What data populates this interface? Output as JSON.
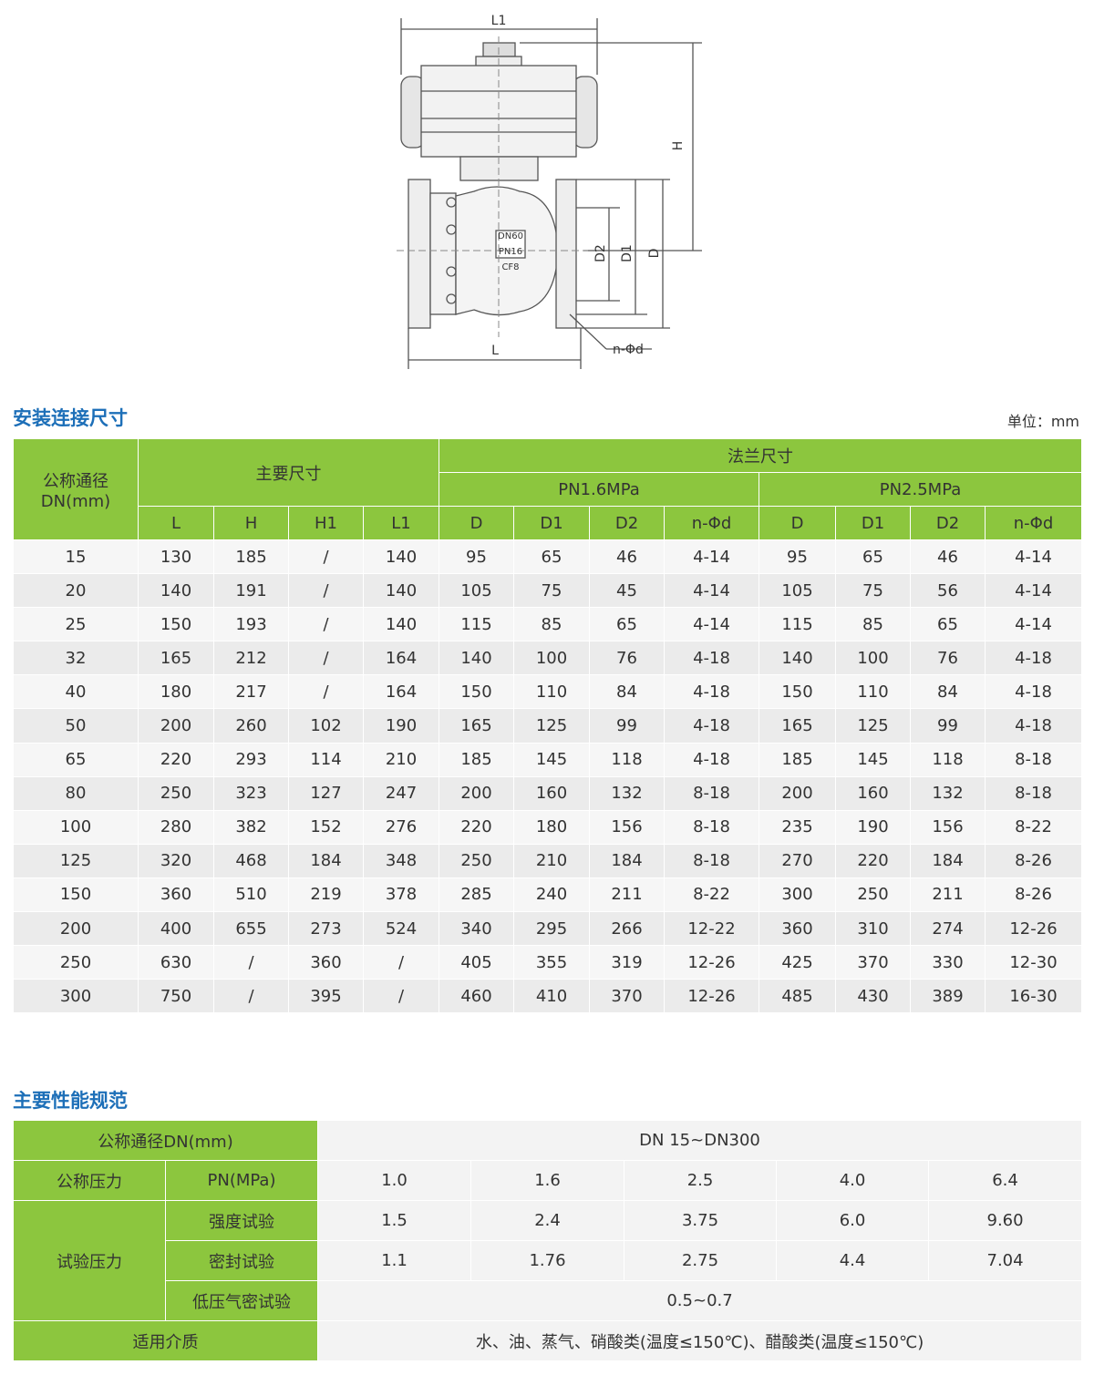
{
  "diagram": {
    "labels": {
      "overall_length": "L1",
      "height": "H",
      "d2": "D2",
      "d1": "D1",
      "d": "D",
      "length": "L",
      "bolt_holes": "n-Φd",
      "body_dn": "DN60",
      "body_pn": "PN16",
      "body_material": "CF8"
    }
  },
  "dimensions": {
    "title": "安装连接尺寸",
    "unit": "单位：mm",
    "header": {
      "dn": [
        "公称通径",
        "DN(mm)"
      ],
      "main": "主要尺寸",
      "flange": "法兰尺寸",
      "pn16": "PN1.6MPa",
      "pn25": "PN2.5MPa",
      "columns": [
        "L",
        "H",
        "H1",
        "L1",
        "D",
        "D1",
        "D2",
        "n-Φd",
        "D",
        "D1",
        "D2",
        "n-Φd"
      ]
    },
    "rows": [
      [
        "15",
        "130",
        "185",
        "/",
        "140",
        "95",
        "65",
        "46",
        "4-14",
        "95",
        "65",
        "46",
        "4-14"
      ],
      [
        "20",
        "140",
        "191",
        "/",
        "140",
        "105",
        "75",
        "45",
        "4-14",
        "105",
        "75",
        "56",
        "4-14"
      ],
      [
        "25",
        "150",
        "193",
        "/",
        "140",
        "115",
        "85",
        "65",
        "4-14",
        "115",
        "85",
        "65",
        "4-14"
      ],
      [
        "32",
        "165",
        "212",
        "/",
        "164",
        "140",
        "100",
        "76",
        "4-18",
        "140",
        "100",
        "76",
        "4-18"
      ],
      [
        "40",
        "180",
        "217",
        "/",
        "164",
        "150",
        "110",
        "84",
        "4-18",
        "150",
        "110",
        "84",
        "4-18"
      ],
      [
        "50",
        "200",
        "260",
        "102",
        "190",
        "165",
        "125",
        "99",
        "4-18",
        "165",
        "125",
        "99",
        "4-18"
      ],
      [
        "65",
        "220",
        "293",
        "114",
        "210",
        "185",
        "145",
        "118",
        "4-18",
        "185",
        "145",
        "118",
        "8-18"
      ],
      [
        "80",
        "250",
        "323",
        "127",
        "247",
        "200",
        "160",
        "132",
        "8-18",
        "200",
        "160",
        "132",
        "8-18"
      ],
      [
        "100",
        "280",
        "382",
        "152",
        "276",
        "220",
        "180",
        "156",
        "8-18",
        "235",
        "190",
        "156",
        "8-22"
      ],
      [
        "125",
        "320",
        "468",
        "184",
        "348",
        "250",
        "210",
        "184",
        "8-18",
        "270",
        "220",
        "184",
        "8-26"
      ],
      [
        "150",
        "360",
        "510",
        "219",
        "378",
        "285",
        "240",
        "211",
        "8-22",
        "300",
        "250",
        "211",
        "8-26"
      ],
      [
        "200",
        "400",
        "655",
        "273",
        "524",
        "340",
        "295",
        "266",
        "12-22",
        "360",
        "310",
        "274",
        "12-26"
      ],
      [
        "250",
        "630",
        "/",
        "360",
        "/",
        "405",
        "355",
        "319",
        "12-26",
        "425",
        "370",
        "330",
        "12-30"
      ],
      [
        "300",
        "750",
        "/",
        "395",
        "/",
        "460",
        "410",
        "370",
        "12-26",
        "485",
        "430",
        "389",
        "16-30"
      ]
    ]
  },
  "performance": {
    "title": "主要性能规范",
    "nominal_dn": {
      "label": "公称通径DN(mm)",
      "value": "DN 15~DN300"
    },
    "pressure": {
      "label": "公称压力",
      "unit": "PN(MPa)",
      "values": [
        "1.0",
        "1.6",
        "2.5",
        "4.0",
        "6.4"
      ]
    },
    "test": {
      "label": "试验压力",
      "strength": {
        "label": "强度试验",
        "values": [
          "1.5",
          "2.4",
          "3.75",
          "6.0",
          "9.60"
        ]
      },
      "seal": {
        "label": "密封试验",
        "values": [
          "1.1",
          "1.76",
          "2.75",
          "4.4",
          "7.04"
        ]
      },
      "low_gas": {
        "label": "低压气密试验",
        "value": "0.5~0.7"
      }
    },
    "medium": {
      "label": "适用介质",
      "value": "水、油、蒸气、硝酸类(温度≤150℃)、醋酸类(温度≤150℃)"
    }
  }
}
